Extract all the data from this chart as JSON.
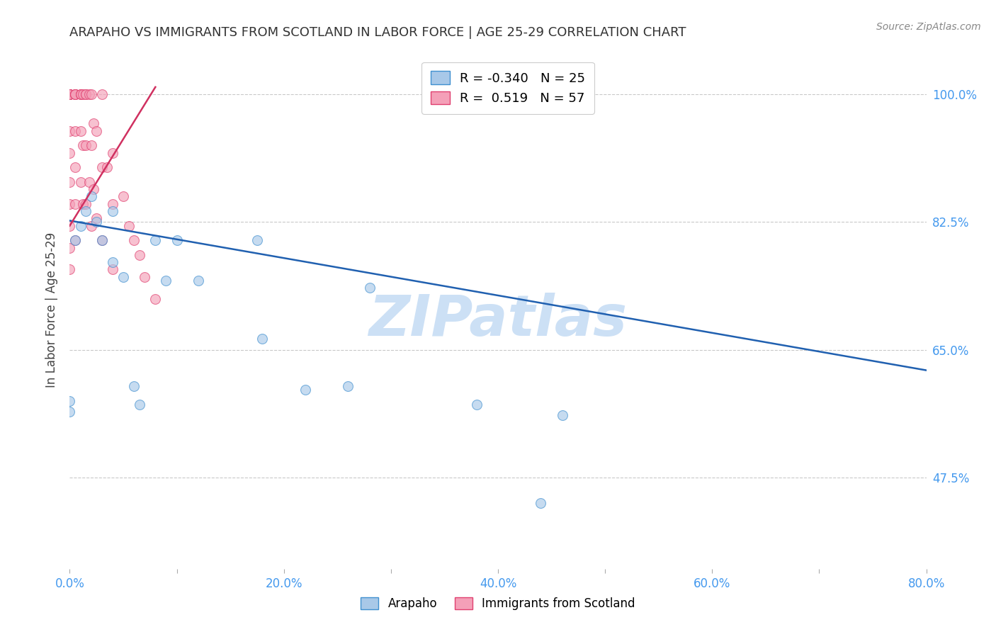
{
  "title": "ARAPAHO VS IMMIGRANTS FROM SCOTLAND IN LABOR FORCE | AGE 25-29 CORRELATION CHART",
  "source": "Source: ZipAtlas.com",
  "ylabel": "In Labor Force | Age 25-29",
  "xlim": [
    0.0,
    0.8
  ],
  "ylim": [
    0.35,
    1.06
  ],
  "xlabel_tick_vals": [
    0.0,
    0.1,
    0.2,
    0.3,
    0.4,
    0.5,
    0.6,
    0.7,
    0.8
  ],
  "xlabel_tick_labels": [
    "0.0%",
    "",
    "20.0%",
    "",
    "40.0%",
    "",
    "60.0%",
    "",
    "80.0%"
  ],
  "ylabel_tick_vals": [
    0.475,
    0.65,
    0.825,
    1.0
  ],
  "ylabel_tick_labels": [
    "47.5%",
    "65.0%",
    "82.5%",
    "100.0%"
  ],
  "arapaho_R": -0.34,
  "arapaho_N": 25,
  "scotland_R": 0.519,
  "scotland_N": 57,
  "arapaho_color": "#a8c8e8",
  "scotland_color": "#f4a0b8",
  "arapaho_edge_color": "#4090d0",
  "scotland_edge_color": "#e04070",
  "arapaho_line_color": "#2060b0",
  "scotland_line_color": "#d03060",
  "watermark": "ZIPatlas",
  "watermark_color": "#cce0f5",
  "arapaho_points_x": [
    0.0,
    0.0,
    0.005,
    0.01,
    0.015,
    0.02,
    0.025,
    0.03,
    0.04,
    0.04,
    0.05,
    0.06,
    0.065,
    0.08,
    0.09,
    0.1,
    0.12,
    0.175,
    0.18,
    0.22,
    0.26,
    0.38,
    0.44,
    0.46,
    0.28
  ],
  "arapaho_points_y": [
    0.58,
    0.565,
    0.8,
    0.82,
    0.84,
    0.86,
    0.825,
    0.8,
    0.77,
    0.84,
    0.75,
    0.6,
    0.575,
    0.8,
    0.745,
    0.8,
    0.745,
    0.8,
    0.665,
    0.595,
    0.6,
    0.575,
    0.44,
    0.56,
    0.735
  ],
  "scotland_points_x": [
    0.0,
    0.0,
    0.0,
    0.0,
    0.0,
    0.0,
    0.0,
    0.0,
    0.0,
    0.0,
    0.0,
    0.0,
    0.0,
    0.0,
    0.0,
    0.005,
    0.005,
    0.005,
    0.005,
    0.005,
    0.005,
    0.005,
    0.005,
    0.01,
    0.01,
    0.01,
    0.01,
    0.01,
    0.012,
    0.012,
    0.012,
    0.015,
    0.015,
    0.015,
    0.015,
    0.018,
    0.018,
    0.02,
    0.02,
    0.02,
    0.022,
    0.022,
    0.025,
    0.025,
    0.03,
    0.03,
    0.03,
    0.035,
    0.04,
    0.04,
    0.04,
    0.05,
    0.055,
    0.06,
    0.065,
    0.07,
    0.08
  ],
  "scotland_points_y": [
    1.0,
    1.0,
    1.0,
    1.0,
    1.0,
    1.0,
    1.0,
    1.0,
    0.95,
    0.92,
    0.88,
    0.85,
    0.82,
    0.79,
    0.76,
    1.0,
    1.0,
    1.0,
    1.0,
    0.95,
    0.9,
    0.85,
    0.8,
    1.0,
    1.0,
    1.0,
    0.95,
    0.88,
    1.0,
    0.93,
    0.85,
    1.0,
    1.0,
    0.93,
    0.85,
    1.0,
    0.88,
    1.0,
    0.93,
    0.82,
    0.96,
    0.87,
    0.95,
    0.83,
    1.0,
    0.9,
    0.8,
    0.9,
    0.92,
    0.85,
    0.76,
    0.86,
    0.82,
    0.8,
    0.78,
    0.75,
    0.72
  ],
  "arapaho_trend_x": [
    0.0,
    0.8
  ],
  "arapaho_trend_y": [
    0.827,
    0.622
  ],
  "scotland_trend_x": [
    0.0,
    0.08
  ],
  "scotland_trend_y": [
    0.82,
    1.01
  ],
  "background_color": "#ffffff",
  "grid_color": "#bbbbbb",
  "tick_color": "#4499ee",
  "title_color": "#333333",
  "axis_label_color": "#444444"
}
